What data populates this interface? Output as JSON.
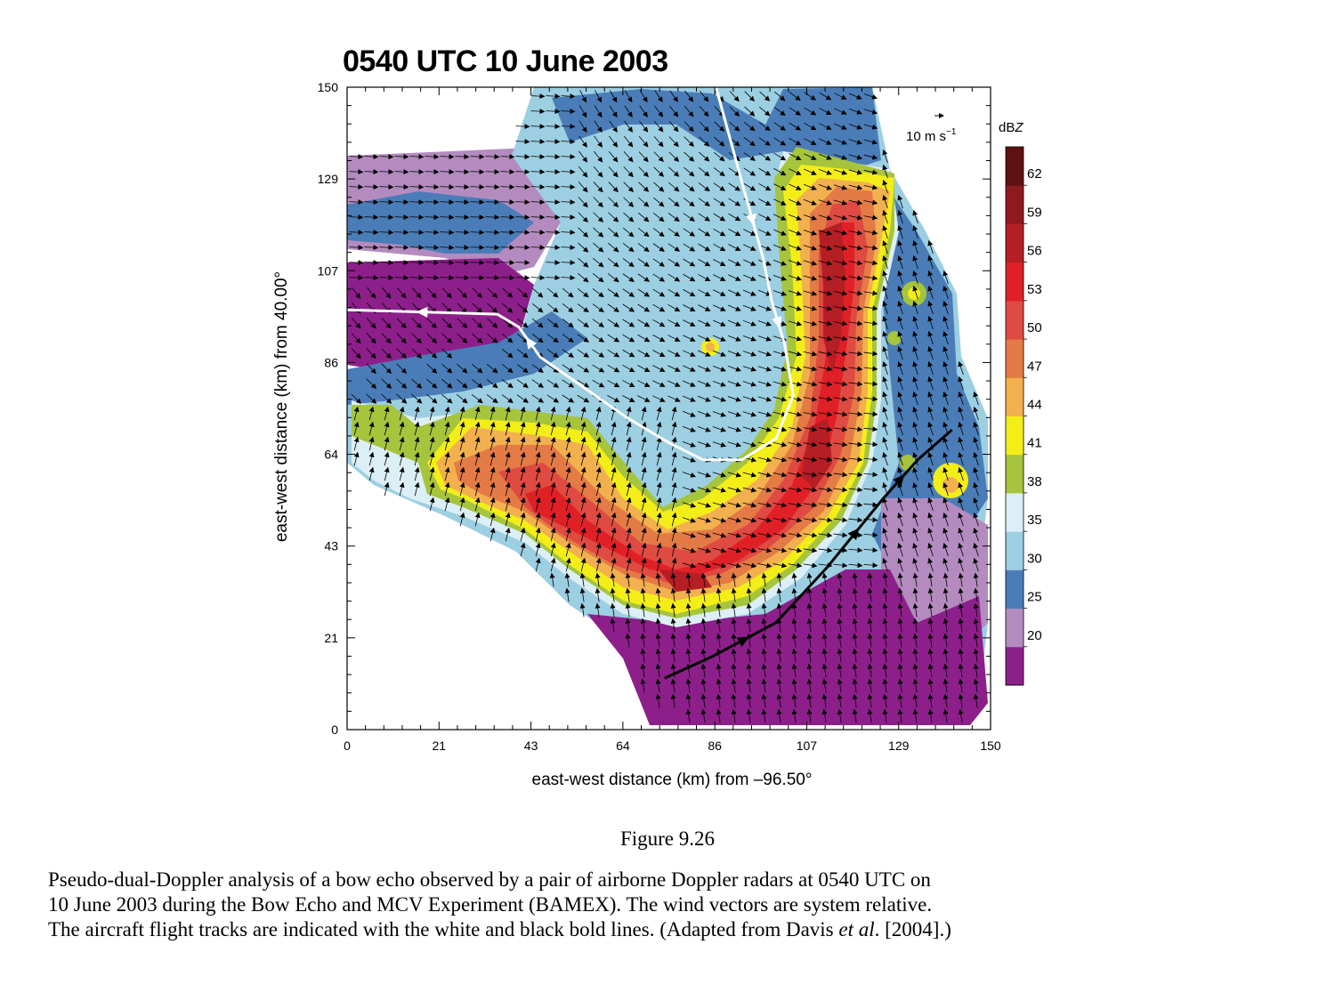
{
  "chart_data": {
    "type": "heatmap",
    "title": "0540 UTC 10 June 2003",
    "xlabel": "east-west distance (km) from –96.50°",
    "ylabel": "east-west distance (km) from 40.00°",
    "xlim": [
      0,
      150
    ],
    "ylim": [
      0,
      150
    ],
    "x_ticks": [
      "0",
      "21",
      "43",
      "64",
      "86",
      "107",
      "129",
      "150"
    ],
    "y_ticks": [
      "0",
      "21",
      "43",
      "64",
      "86",
      "107",
      "129",
      "150"
    ],
    "colorbar": {
      "title": "dB",
      "title_italic": "Z",
      "labels": [
        "20",
        "25",
        "30",
        "35",
        "38",
        "41",
        "44",
        "47",
        "50",
        "53",
        "56",
        "59",
        "62"
      ],
      "colors": [
        "#8d1f8a",
        "#b48bbf",
        "#4a7db8",
        "#9ccfe2",
        "#ddeff6",
        "#a6c43c",
        "#f3ee18",
        "#f2b04e",
        "#e47a45",
        "#df4a42",
        "#e02027",
        "#b51e24",
        "#8f1a1e",
        "#5e1111"
      ]
    },
    "wind_reference": {
      "label": "10 m s",
      "exponent": "−1"
    },
    "white_track_a": [
      [
        0,
        98
      ],
      [
        35,
        97
      ],
      [
        40,
        94
      ],
      [
        45,
        87
      ],
      [
        55,
        80
      ],
      [
        65,
        73
      ],
      [
        75,
        67
      ],
      [
        83,
        63
      ],
      [
        92,
        63
      ],
      [
        100,
        68
      ],
      [
        104,
        78
      ],
      [
        102,
        90
      ],
      [
        99,
        100
      ],
      [
        97,
        110
      ],
      [
        92,
        128
      ],
      [
        86,
        150
      ]
    ],
    "black_track": [
      [
        74,
        12
      ],
      [
        85,
        17
      ],
      [
        100,
        25
      ],
      [
        112,
        38
      ],
      [
        125,
        54
      ],
      [
        133,
        63
      ],
      [
        141,
        70
      ]
    ]
  },
  "figure": {
    "label": "Figure 9.26",
    "caption_line1": "Pseudo-dual-Doppler analysis of a bow echo observed by a pair of airborne Doppler radars at 0540 UTC on",
    "caption_line2": "10 June 2003 during the Bow Echo and MCV Experiment (BAMEX). The wind vectors are system relative.",
    "caption_line3_a": "The aircraft flight tracks are indicated with the white and black bold lines. (Adapted from Davis ",
    "caption_line3_em": "et al",
    "caption_line3_b": ". [2004].)"
  }
}
